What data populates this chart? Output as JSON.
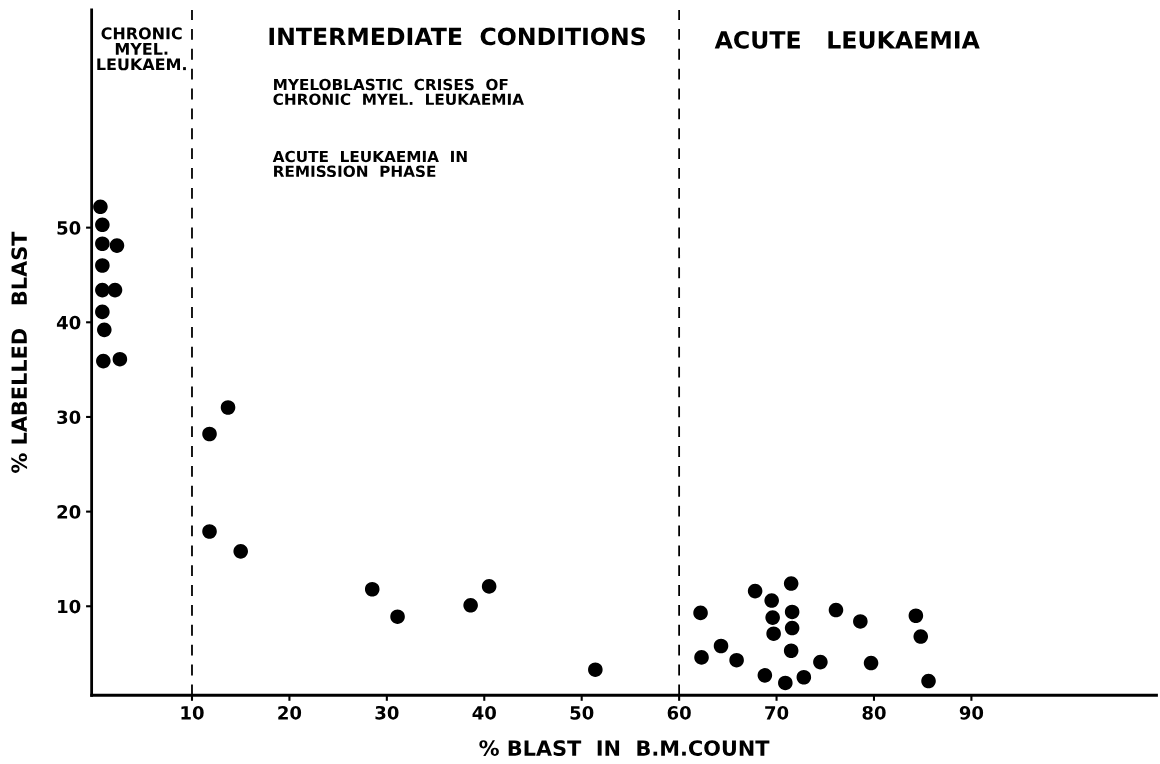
{
  "chart_data": {
    "type": "scatter",
    "xlabel": "% BLAST  IN  B.M.COUNT",
    "ylabel": "% LABELLED   BLAST",
    "series": [
      {
        "color": "#000000",
        "x": [
          0.6,
          0.8,
          0.8,
          2.3,
          0.8,
          0.8,
          2.1,
          0.8,
          1.0,
          0.9,
          2.6,
          11.8,
          13.7,
          11.8,
          15.0,
          28.5,
          31.1,
          38.6,
          40.5,
          51.4,
          62.2,
          62.3,
          64.3,
          65.9,
          67.8,
          68.8,
          69.5,
          69.6,
          69.7,
          70.9,
          71.5,
          71.6,
          71.6,
          71.5,
          72.8,
          74.5,
          76.1,
          78.6,
          79.7,
          84.3,
          84.8,
          85.6
        ],
        "values": [
          52.2,
          50.3,
          48.3,
          48.1,
          46.0,
          43.4,
          43.4,
          41.1,
          39.2,
          35.9,
          36.1,
          28.2,
          31.0,
          17.9,
          15.8,
          11.8,
          8.9,
          10.1,
          12.1,
          3.3,
          9.3,
          4.6,
          5.8,
          4.3,
          11.6,
          2.7,
          10.6,
          8.8,
          7.1,
          1.9,
          12.4,
          9.4,
          7.7,
          5.3,
          2.5,
          4.1,
          9.6,
          8.4,
          4.0,
          9.0,
          6.8,
          2.1
        ]
      }
    ],
    "marker": "circle",
    "xlim": [
      -0.3,
      109
    ],
    "xticks": [
      10,
      20,
      30,
      40,
      50,
      60,
      70,
      80,
      90
    ],
    "ylim": [
      0.6,
      73
    ],
    "yticks": [
      10,
      20,
      30,
      40,
      50
    ],
    "grid": false,
    "ref_lines": [
      {
        "axis": "x",
        "value": 10,
        "color": "#000000",
        "line_style": "dashed"
      },
      {
        "axis": "x",
        "value": 60,
        "color": "#000000",
        "line_style": "dashed"
      }
    ],
    "annotations": [
      "CHRONIC\nMYEL.\nLEUKAEM.",
      "INTERMEDIATE  CONDITIONS",
      "MYELOBLASTIC  CRISES  OF\nCHRONIC  MYEL.  LEUKAEMIA",
      "ACUTE  LEUKAEMIA  IN\nREMISSION  PHASE",
      "ACUTE   LEUKAEMIA"
    ]
  }
}
